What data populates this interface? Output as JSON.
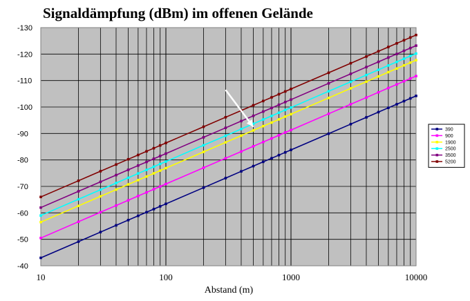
{
  "chart_data": {
    "type": "line",
    "title": "Signaldämpfung (dBm) im offenen Gelände",
    "xlabel": "Abstand (m)",
    "ylabel": "",
    "x_scale": "log",
    "xlim": [
      10,
      10000
    ],
    "ylim": [
      -130,
      -40
    ],
    "x_ticks": [
      "10",
      "100",
      "1000",
      "10000"
    ],
    "y_ticks": [
      "-130",
      "-120",
      "-110",
      "-100",
      "-90",
      "-80",
      "-70",
      "-60",
      "-50",
      "-40"
    ],
    "grid": true,
    "legend_position": "right",
    "plot_background": "#c0c0c0",
    "x": [
      10,
      20,
      30,
      40,
      50,
      60,
      70,
      80,
      90,
      100,
      200,
      300,
      400,
      500,
      600,
      700,
      800,
      900,
      1000,
      2000,
      3000,
      4000,
      5000,
      6000,
      7000,
      8000,
      9000,
      10000
    ],
    "series": [
      {
        "name": "390",
        "color": "#000080",
        "start_value": -43,
        "slope_per_decade": -20.4
      },
      {
        "name": "900",
        "color": "#ff00ff",
        "start_value": -50.5,
        "slope_per_decade": -20.4
      },
      {
        "name": "1900",
        "color": "#ffff00",
        "start_value": -56.5,
        "slope_per_decade": -20.4
      },
      {
        "name": "2500",
        "color": "#00ffff",
        "start_value": -59,
        "slope_per_decade": -20.4
      },
      {
        "name": "3500",
        "color": "#800080",
        "start_value": -62,
        "slope_per_decade": -20.4
      },
      {
        "name": "5200",
        "color": "#800000",
        "start_value": -66,
        "slope_per_decade": -20.4
      }
    ],
    "annotation": {
      "type": "arrow",
      "from": [
        300,
        -106.5
      ],
      "to": [
        500,
        -92.5
      ],
      "color": "#ffffff"
    }
  }
}
